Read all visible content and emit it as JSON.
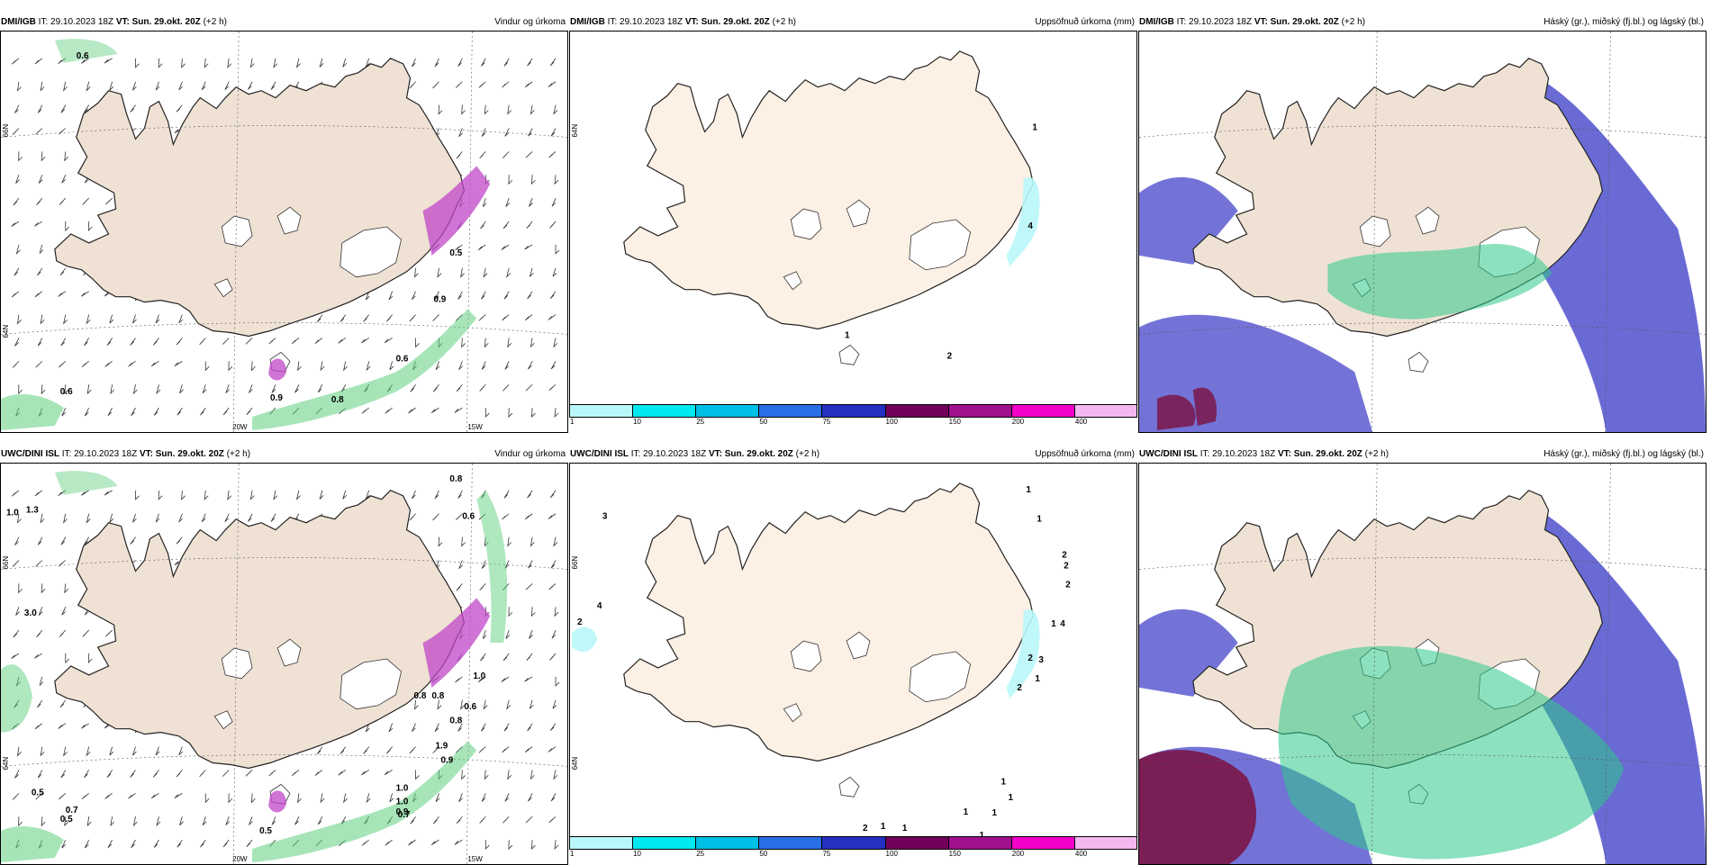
{
  "panels": [
    {
      "model": "DMI/IGB",
      "it_label": "IT:",
      "it": "29.10.2023 18Z",
      "vt_label": "VT:",
      "vt": "Sun. 29.okt. 20Z",
      "lead": "(+2 h)",
      "title": "Vindur og úrkoma",
      "labels": [
        "0.6",
        "0.6",
        "0.6",
        "0.9",
        "0.8",
        "0.9",
        "0.5"
      ],
      "axis": {
        "lon": [
          "20W",
          "15W"
        ],
        "lat": [
          "66N",
          "64N"
        ]
      }
    },
    {
      "model": "DMI/IGB",
      "it_label": "IT:",
      "it": "29.10.2023 18Z",
      "vt_label": "VT:",
      "vt": "Sun. 29.okt. 20Z",
      "lead": "(+2 h)",
      "title": "Uppsöfnuð úrkoma (mm)",
      "labels": [
        "1",
        "4",
        "2",
        "1"
      ],
      "axis": {
        "lat": [
          "64N"
        ]
      }
    },
    {
      "model": "DMI/IGB",
      "it_label": "IT:",
      "it": "29.10.2023 18Z",
      "vt_label": "VT:",
      "vt": "Sun. 29.okt. 20Z",
      "lead": "(+2 h)",
      "title": "Háský (gr.), miðský (fj.bl.) og lágský (bl.)"
    },
    {
      "model": "UWC/DINI ISL",
      "it_label": "IT:",
      "it": "29.10.2023 18Z",
      "vt_label": "VT:",
      "vt": "Sun. 29.okt. 20Z",
      "lead": "(+2 h)",
      "title": "Vindur og úrkoma",
      "labels": [
        "1.0",
        "1.3",
        "3.0",
        "0.8",
        "0.6",
        "0.5",
        "0.5",
        "0.7",
        "0.5",
        "1.0",
        "1.0",
        "0.9",
        "0.8",
        "0.8",
        "1.9",
        "0.9",
        "0.7",
        "0.8",
        "0.6",
        "1.0"
      ],
      "axis": {
        "lon": [
          "20W",
          "15W"
        ],
        "lat": [
          "66N",
          "64N"
        ]
      }
    },
    {
      "model": "UWC/DINI ISL",
      "it_label": "IT:",
      "it": "29.10.2023 18Z",
      "vt_label": "VT:",
      "vt": "Sun. 29.okt. 20Z",
      "lead": "(+2 h)",
      "title": "Uppsöfnuð úrkoma (mm)",
      "labels": [
        "3",
        "4",
        "2",
        "1",
        "1",
        "2",
        "2",
        "2",
        "1",
        "4",
        "2",
        "3",
        "1",
        "2",
        "1",
        "1",
        "1",
        "1",
        "1",
        "2",
        "1",
        "1"
      ],
      "axis": {
        "lat": [
          "66N",
          "64N"
        ]
      }
    },
    {
      "model": "UWC/DINI ISL",
      "it_label": "IT:",
      "it": "29.10.2023 18Z",
      "vt_label": "VT:",
      "vt": "Sun. 29.okt. 20Z",
      "lead": "(+2 h)",
      "title": "Háský (gr.), miðský (fj.bl.) og lágský (bl.)"
    }
  ],
  "colorbar": {
    "ticks": [
      "1",
      "10",
      "25",
      "50",
      "75",
      "100",
      "150",
      "200",
      "400"
    ],
    "colors": [
      "#b9f7fa",
      "#00e8f0",
      "#00bfe6",
      "#2a6ee6",
      "#2430c0",
      "#70005a",
      "#a0108e",
      "#f000c8",
      "#f4b8f0"
    ]
  },
  "colors": {
    "land": "#efe2d4",
    "ice": "#ffffff",
    "land_fill_prec": "#fdf0e4",
    "precip_green": "#5fcf7f",
    "cloud_low": "#5a5ad0",
    "cloud_mid": "#2ec88a",
    "cloud_high": "#7a1040"
  }
}
